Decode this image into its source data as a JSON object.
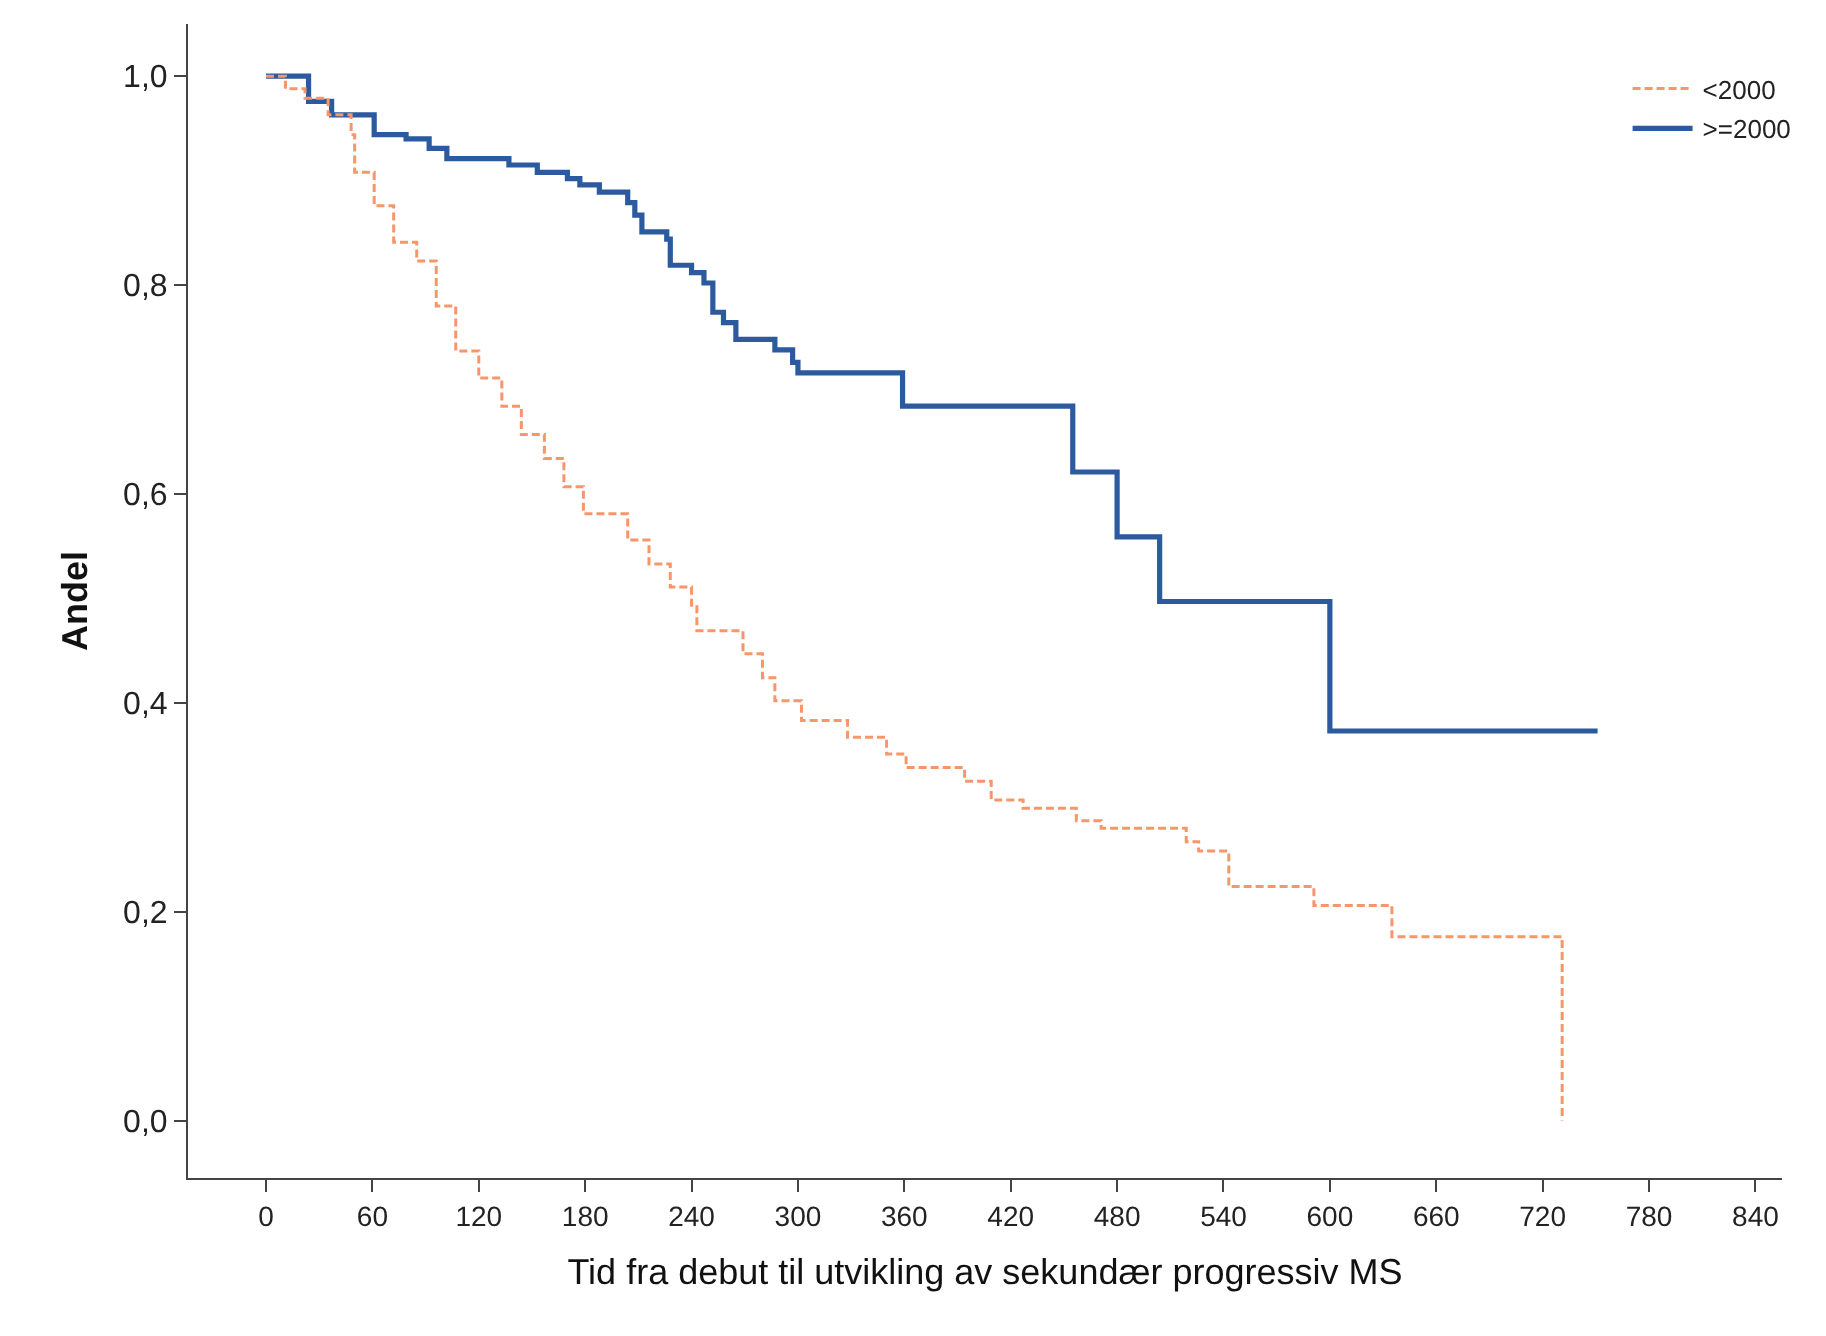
{
  "chart_data": {
    "type": "step",
    "xlabel": "Tid fra debut til utvikling av sekundær progressiv MS",
    "ylabel": "Andel",
    "series": [
      {
        "name": "<2000",
        "color": "#f7966b",
        "line_style": "dashed",
        "x": [
          0,
          11,
          22,
          35,
          48,
          50,
          61,
          72,
          85,
          96,
          107,
          120,
          133,
          144,
          157,
          168,
          179,
          204,
          216,
          228,
          240,
          243,
          269,
          280,
          287,
          302,
          328,
          350,
          361,
          394,
          409,
          427,
          457,
          471,
          519,
          526,
          543,
          591,
          635,
          731
        ],
        "values": [
          1.0,
          0.988,
          0.979,
          0.963,
          0.944,
          0.908,
          0.876,
          0.841,
          0.823,
          0.78,
          0.737,
          0.711,
          0.684,
          0.657,
          0.634,
          0.607,
          0.581,
          0.556,
          0.533,
          0.511,
          0.492,
          0.469,
          0.447,
          0.424,
          0.402,
          0.383,
          0.367,
          0.351,
          0.338,
          0.325,
          0.307,
          0.299,
          0.287,
          0.28,
          0.267,
          0.258,
          0.224,
          0.206,
          0.176,
          0.0
        ]
      },
      {
        "name": ">=2000",
        "color": "#2b5a9e",
        "line_style": "solid",
        "x": [
          0,
          24,
          37,
          61,
          79,
          92,
          102,
          137,
          153,
          170,
          177,
          188,
          204,
          208,
          212,
          226,
          228,
          240,
          247,
          252,
          258,
          265,
          287,
          297,
          300,
          359,
          455,
          480,
          504,
          600,
          751
        ],
        "values": [
          1.0,
          0.976,
          0.963,
          0.944,
          0.94,
          0.931,
          0.921,
          0.915,
          0.908,
          0.902,
          0.896,
          0.889,
          0.879,
          0.867,
          0.851,
          0.844,
          0.819,
          0.812,
          0.802,
          0.774,
          0.764,
          0.748,
          0.738,
          0.726,
          0.716,
          0.684,
          0.621,
          0.559,
          0.497,
          0.373,
          0.373
        ]
      }
    ],
    "xlim": [
      -44,
      855
    ],
    "xticks": [
      0,
      60,
      120,
      180,
      240,
      300,
      360,
      420,
      480,
      540,
      600,
      660,
      720,
      780,
      840
    ],
    "ylim": [
      -0.055,
      1.05
    ],
    "yticks": [
      {
        "value": 0,
        "label": "0,0"
      },
      {
        "value": 0.2,
        "label": "0,2"
      },
      {
        "value": 0.4,
        "label": "0,4"
      },
      {
        "value": 0.6,
        "label": "0,6"
      },
      {
        "value": 0.8,
        "label": "0,8"
      },
      {
        "value": 1.0,
        "label": "1,0"
      }
    ],
    "grid": false,
    "legend": "top right",
    "marker": "none"
  }
}
